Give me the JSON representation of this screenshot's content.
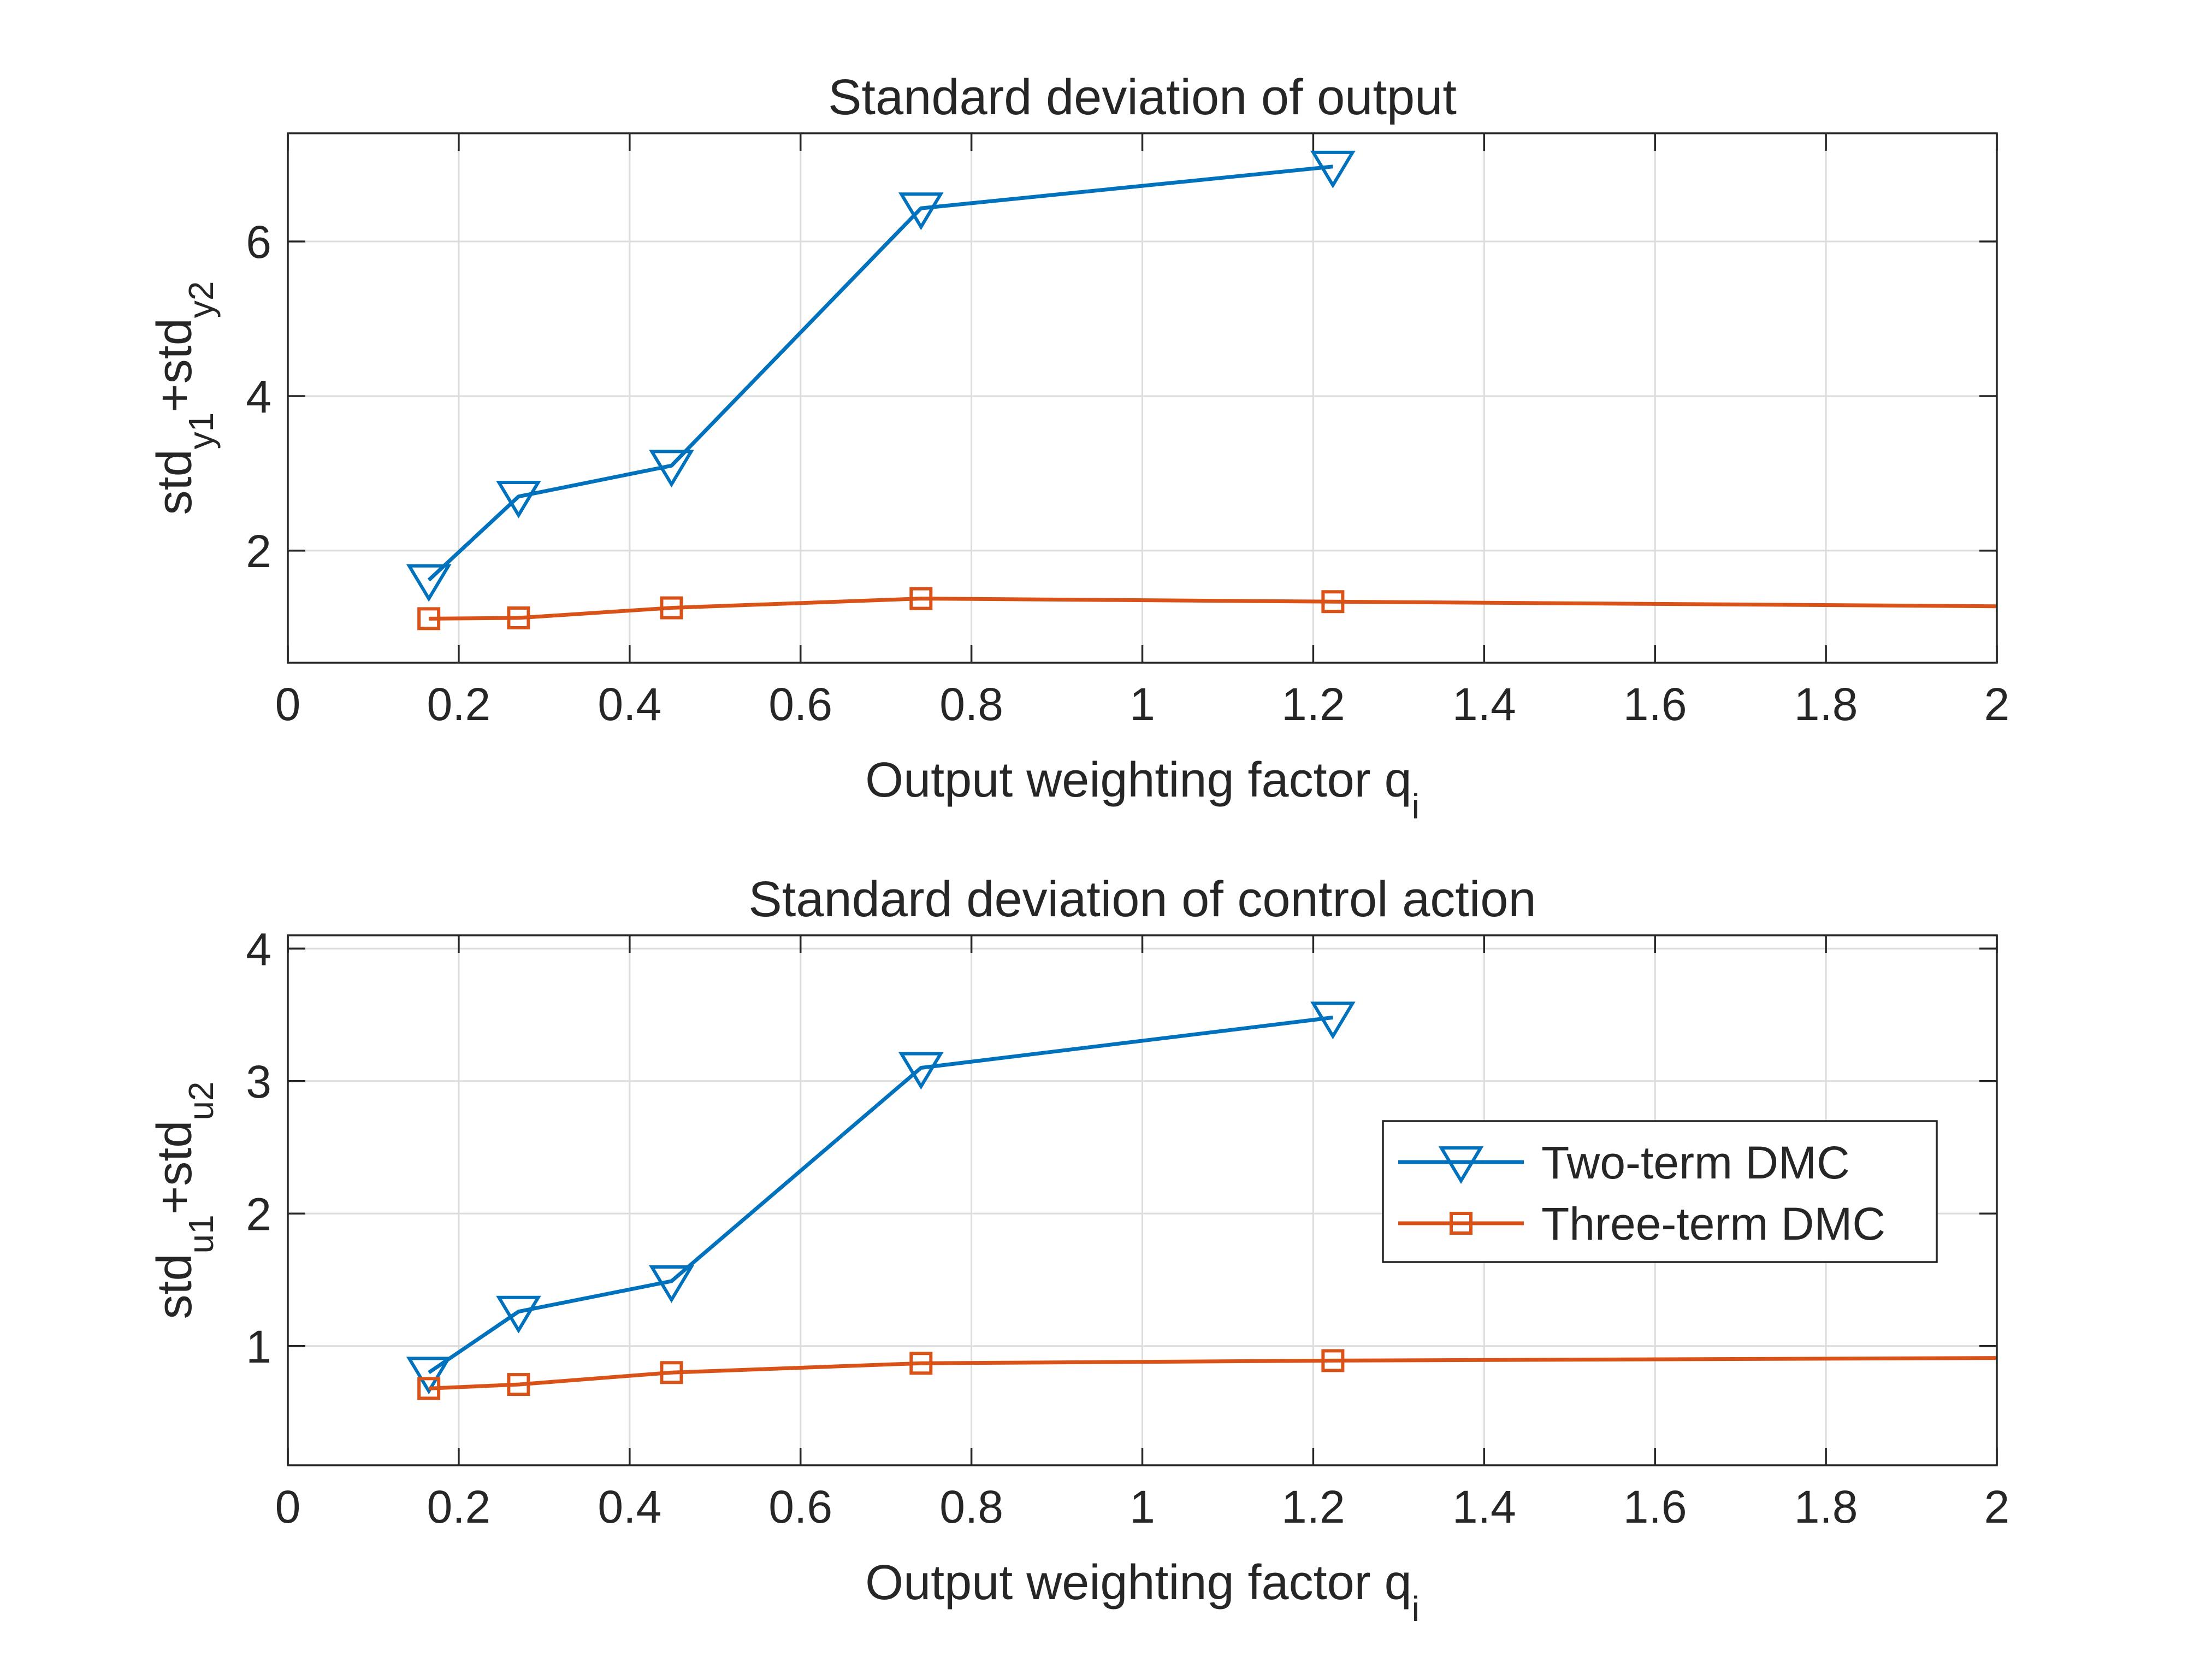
{
  "chart_data": [
    {
      "type": "line",
      "title": "Standard deviation of output",
      "xlabel": {
        "base": "Output weighting factor q",
        "sub": "i"
      },
      "ylabel": {
        "parts": [
          {
            "t": "std",
            "sub": false
          },
          {
            "t": "y1",
            "sub": true
          },
          {
            "t": "+std",
            "sub": false
          },
          {
            "t": "y2",
            "sub": true
          }
        ]
      },
      "xlim": [
        0,
        2
      ],
      "ylim": [
        0.55,
        7.4
      ],
      "xticks": [
        0,
        0.2,
        0.4,
        0.6,
        0.8,
        1,
        1.2,
        1.4,
        1.6,
        1.8,
        2
      ],
      "xtick_labels": [
        "0",
        "0.2",
        "0.4",
        "0.6",
        "0.8",
        "1",
        "1.2",
        "1.4",
        "1.6",
        "1.8",
        "2"
      ],
      "yticks": [
        2,
        4,
        6
      ],
      "ytick_labels": [
        "2",
        "4",
        "6"
      ],
      "grid": true,
      "series": [
        {
          "name": "Two-term DMC",
          "color": "#0072BD",
          "marker": "triangle-down",
          "x": [
            0.165,
            0.27,
            0.449,
            0.741,
            1.223
          ],
          "y": [
            1.62,
            2.7,
            3.1,
            6.43,
            6.97
          ]
        },
        {
          "name": "Three-term DMC",
          "color": "#D95319",
          "marker": "square",
          "x": [
            0.165,
            0.27,
            0.449,
            0.741,
            1.223,
            2.0
          ],
          "y": [
            1.12,
            1.13,
            1.26,
            1.38,
            1.34,
            1.28
          ],
          "marker_count": 5
        }
      ]
    },
    {
      "type": "line",
      "title": "Standard deviation of control action",
      "xlabel": {
        "base": "Output weighting factor q",
        "sub": "i"
      },
      "ylabel": {
        "parts": [
          {
            "t": "std",
            "sub": false
          },
          {
            "t": "u1",
            "sub": true
          },
          {
            "t": "+std",
            "sub": false
          },
          {
            "t": "u2",
            "sub": true
          }
        ]
      },
      "xlim": [
        0,
        2
      ],
      "ylim": [
        0.1,
        4.1
      ],
      "xticks": [
        0,
        0.2,
        0.4,
        0.6,
        0.8,
        1,
        1.2,
        1.4,
        1.6,
        1.8,
        2
      ],
      "xtick_labels": [
        "0",
        "0.2",
        "0.4",
        "0.6",
        "0.8",
        "1",
        "1.2",
        "1.4",
        "1.6",
        "1.8",
        "2"
      ],
      "yticks": [
        1,
        2,
        3,
        4
      ],
      "ytick_labels": [
        "1",
        "2",
        "3",
        "4"
      ],
      "grid": true,
      "legend": {
        "position": "right",
        "entries": [
          "Two-term DMC",
          "Three-term DMC"
        ]
      },
      "series": [
        {
          "name": "Two-term DMC",
          "color": "#0072BD",
          "marker": "triangle-down",
          "x": [
            0.165,
            0.27,
            0.449,
            0.741,
            1.223
          ],
          "y": [
            0.8,
            1.26,
            1.49,
            3.1,
            3.48
          ]
        },
        {
          "name": "Three-term DMC",
          "color": "#D95319",
          "marker": "square",
          "x": [
            0.165,
            0.27,
            0.449,
            0.741,
            1.223,
            2.0
          ],
          "y": [
            0.68,
            0.71,
            0.8,
            0.87,
            0.89,
            0.91
          ],
          "marker_count": 5
        }
      ]
    }
  ]
}
